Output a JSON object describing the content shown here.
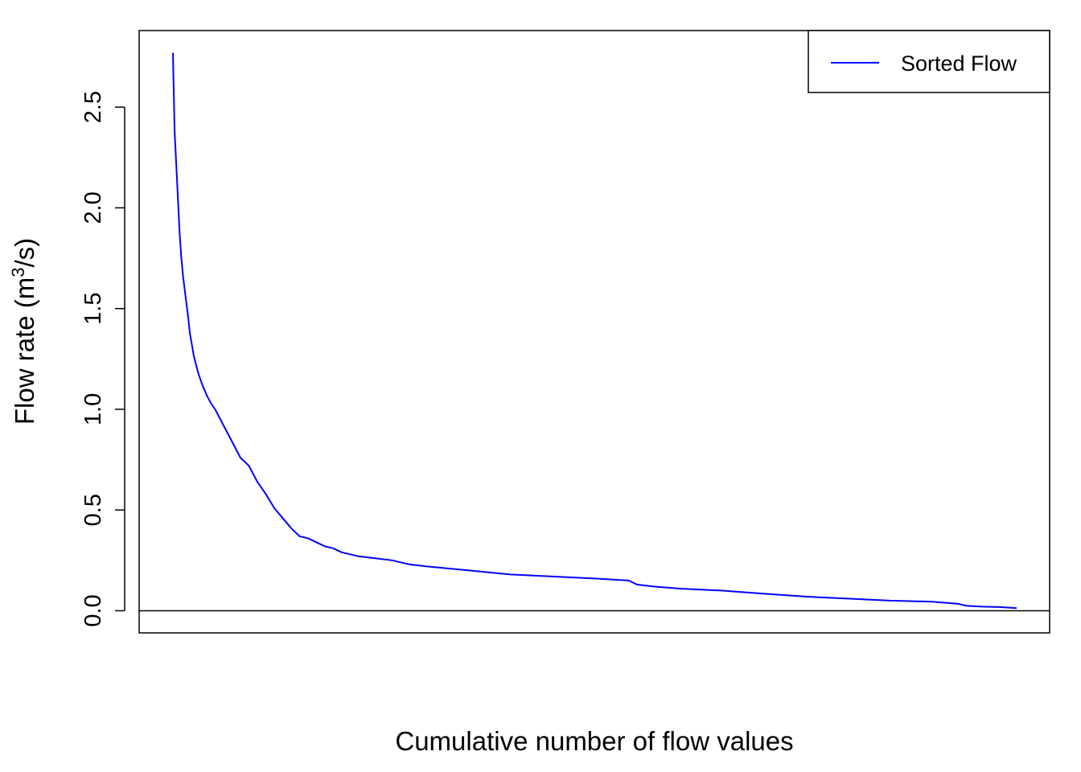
{
  "chart_data": {
    "type": "line",
    "title": "",
    "xlabel": "Cumulative number of flow values",
    "ylabel_main": "Flow rate (m",
    "ylabel_sup": "3",
    "ylabel_tail": "/s)",
    "xlim": [
      0,
      1000
    ],
    "ylim": [
      -0.11,
      2.88
    ],
    "x_axis_drawn": false,
    "grid": false,
    "yticks": [
      {
        "value": 0.0,
        "label": "0.0"
      },
      {
        "value": 0.5,
        "label": "0.5"
      },
      {
        "value": 1.0,
        "label": "1.0"
      },
      {
        "value": 1.5,
        "label": "1.5"
      },
      {
        "value": 2.0,
        "label": "2.0"
      },
      {
        "value": 2.5,
        "label": "2.5"
      }
    ],
    "reference_line": {
      "y": 0,
      "color": "#000000"
    },
    "legend": {
      "position": "top-right",
      "entries": [
        {
          "label": "Sorted Flow",
          "color": "#0000ff"
        }
      ]
    },
    "series": [
      {
        "name": "Sorted Flow",
        "color": "#0000ff",
        "x": [
          0,
          2,
          4,
          6,
          8,
          10,
          12,
          15,
          18,
          20,
          25,
          30,
          35,
          40,
          45,
          50,
          55,
          60,
          70,
          80,
          90,
          100,
          110,
          120,
          130,
          140,
          150,
          160,
          170,
          180,
          190,
          195,
          200,
          220,
          240,
          260,
          280,
          300,
          350,
          400,
          450,
          500,
          540,
          550,
          560,
          570,
          600,
          650,
          700,
          750,
          800,
          850,
          900,
          930,
          940,
          950,
          960,
          980,
          1000
        ],
        "y": [
          2.77,
          2.38,
          2.21,
          2.04,
          1.87,
          1.75,
          1.66,
          1.56,
          1.46,
          1.38,
          1.26,
          1.18,
          1.12,
          1.07,
          1.03,
          1.0,
          0.96,
          0.92,
          0.84,
          0.76,
          0.72,
          0.64,
          0.58,
          0.51,
          0.46,
          0.41,
          0.37,
          0.36,
          0.34,
          0.32,
          0.31,
          0.3,
          0.29,
          0.27,
          0.26,
          0.25,
          0.23,
          0.22,
          0.2,
          0.18,
          0.17,
          0.16,
          0.15,
          0.13,
          0.125,
          0.12,
          0.11,
          0.1,
          0.085,
          0.07,
          0.06,
          0.05,
          0.045,
          0.035,
          0.025,
          0.022,
          0.02,
          0.018,
          0.013
        ]
      }
    ]
  }
}
